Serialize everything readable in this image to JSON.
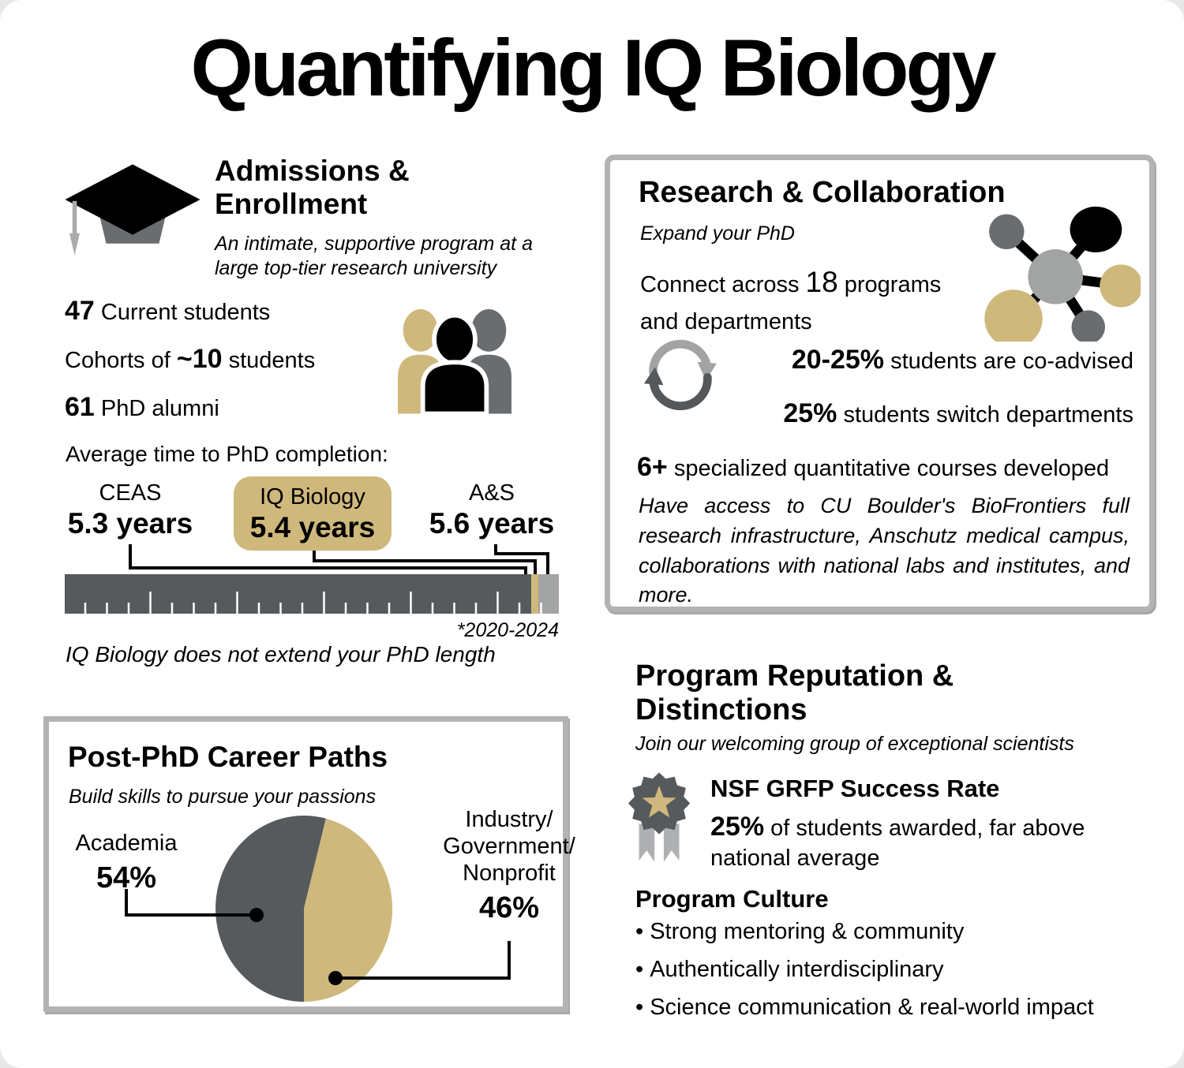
{
  "title": "Quantifying IQ Biology",
  "colors": {
    "gold": "#CFB87C",
    "dark_gray": "#565A5C",
    "mid_gray": "#6a6d70",
    "light_gray": "#A2A4A3",
    "box_border_gray": "#b1b3b5",
    "black": "#000000"
  },
  "icons": {
    "admissions": "graduation-cap-icon",
    "students": "people-icon",
    "research": "network-nodes-icon",
    "switch": "sync-arrows-icon",
    "award": "award-badge-icon"
  },
  "admissions": {
    "heading": "Admissions & Enrollment",
    "subtitle": "An intimate, supportive program at a large top-tier research university",
    "stats": [
      {
        "prefix": "",
        "value": "47",
        "suffix": " Current students"
      },
      {
        "prefix": "Cohorts of ",
        "value": "~10",
        "suffix": " students"
      },
      {
        "prefix": "",
        "value": "61",
        "suffix": " PhD alumni"
      }
    ],
    "timeline": {
      "caption": "Average time to PhD completion:",
      "items": [
        {
          "label": "CEAS",
          "value": "5.3 years",
          "highlight": false
        },
        {
          "label": "IQ Biology",
          "value": "5.4 years",
          "highlight": true
        },
        {
          "label": "A&S",
          "value": "5.6 years",
          "highlight": false
        }
      ],
      "footnote": "*2020-2024",
      "note": "IQ Biology does not extend your PhD length"
    }
  },
  "research": {
    "heading": "Research & Collaboration",
    "subtitle": "Expand your PhD",
    "connect": {
      "prefix": "Connect across ",
      "value": "18",
      "suffix": " programs and departments"
    },
    "stats": [
      {
        "value": "20-25%",
        "suffix": " students are co-advised"
      },
      {
        "value": "25%",
        "suffix": " students switch departments"
      },
      {
        "value": "6+",
        "suffix": " specialized quantitative courses developed"
      }
    ],
    "paragraph": "Have access to CU Boulder's BioFrontiers full research infrastructure, Anschutz medical campus, collaborations with national labs and institutes, and more."
  },
  "careers": {
    "heading": "Post-PhD Career Paths",
    "subtitle": "Build skills to pursue your passions",
    "slices": [
      {
        "label": "Academia",
        "value": "54%"
      },
      {
        "label": "Industry/Government/Nonprofit",
        "label_lines": [
          "Industry/",
          "Government/",
          "Nonprofit"
        ],
        "value": "46%"
      }
    ]
  },
  "reputation": {
    "heading": "Program Reputation & Distinctions",
    "subtitle": "Join our welcoming group of exceptional scientists",
    "nsf": {
      "heading": "NSF GRFP Success Rate",
      "value": "25%",
      "suffix": " of students awarded,  far above national average"
    },
    "culture": {
      "heading": "Program Culture",
      "bullets": [
        "Strong mentoring & community",
        "Authentically interdisciplinary",
        "Science communication & real-world impact"
      ]
    }
  },
  "chart_data": [
    {
      "type": "bar",
      "title": "Average time to PhD completion:",
      "categories": [
        "CEAS",
        "IQ Biology",
        "A&S"
      ],
      "values": [
        5.3,
        5.4,
        5.6
      ],
      "unit": "years",
      "highlight_category": "IQ Biology",
      "footnote": "*2020-2024",
      "annotation": "IQ Biology does not extend your PhD length",
      "layout": "ruler-with-callouts"
    },
    {
      "type": "pie",
      "title": "Post-PhD Career Paths",
      "categories": [
        "Academia",
        "Industry/Government/Nonprofit"
      ],
      "values": [
        54,
        46
      ],
      "unit": "%",
      "colors": [
        "#565A5C",
        "#CFB87C"
      ],
      "legend_position": "callout-labels"
    }
  ]
}
